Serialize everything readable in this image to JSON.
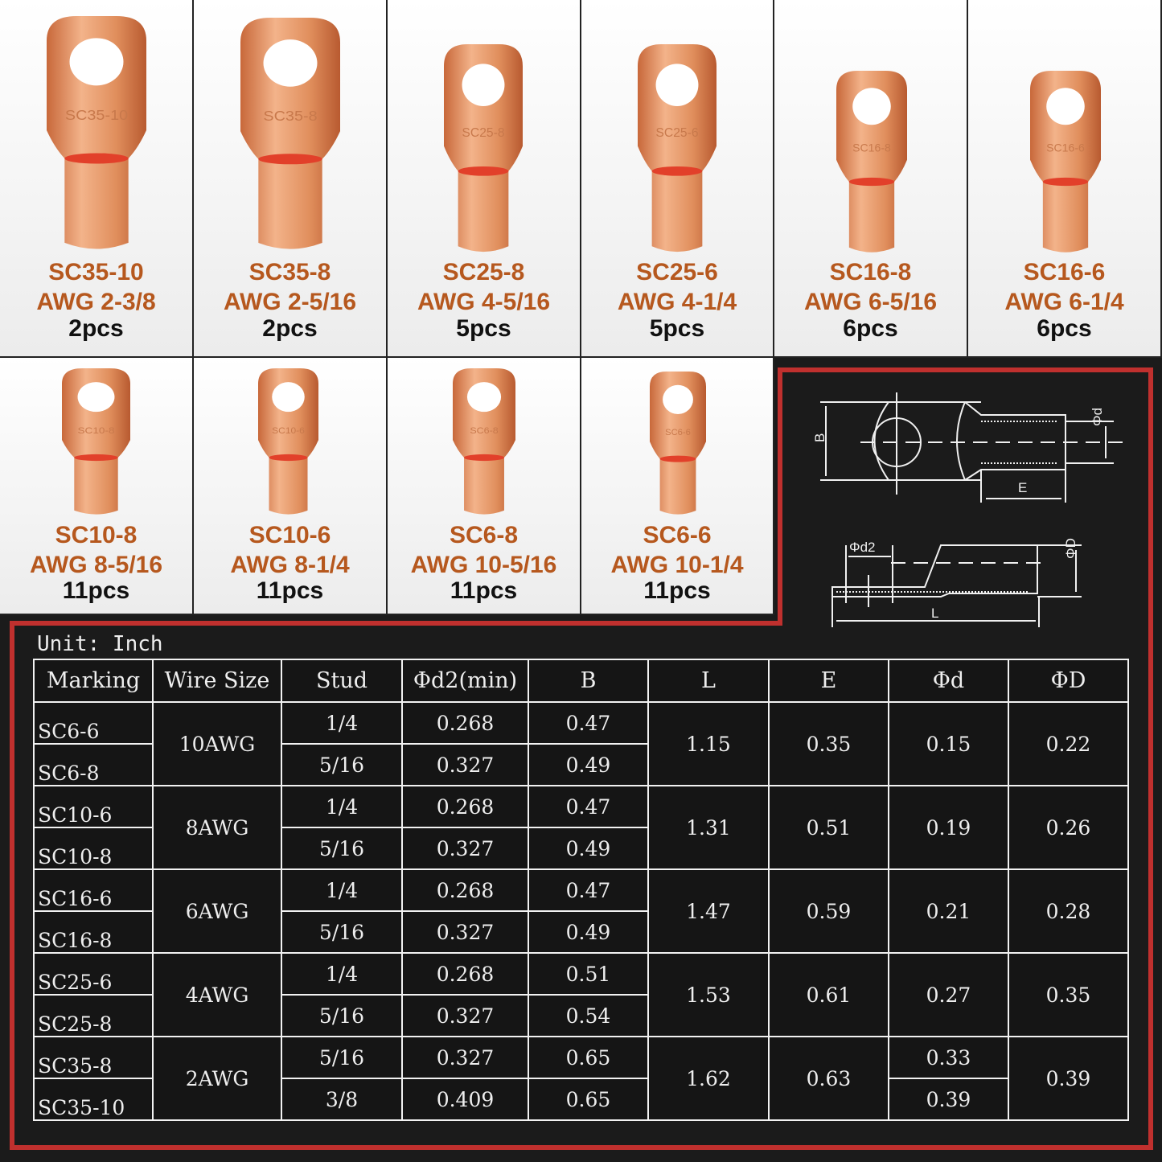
{
  "colors": {
    "copper": "#e59560",
    "label": "#b6581e",
    "frame": "#c0302e",
    "background": "#1b1b1b"
  },
  "products": [
    {
      "marking": "SC35-10",
      "awg": "AWG 2-3/8",
      "qty": "2pcs"
    },
    {
      "marking": "SC35-8",
      "awg": "AWG 2-5/16",
      "qty": "2pcs"
    },
    {
      "marking": "SC25-8",
      "awg": "AWG 4-5/16",
      "qty": "5pcs"
    },
    {
      "marking": "SC25-6",
      "awg": "AWG 4-1/4",
      "qty": "5pcs"
    },
    {
      "marking": "SC16-8",
      "awg": "AWG 6-5/16",
      "qty": "6pcs"
    },
    {
      "marking": "SC16-6",
      "awg": "AWG 6-1/4",
      "qty": "6pcs"
    },
    {
      "marking": "SC10-8",
      "awg": "AWG 8-5/16",
      "qty": "11pcs"
    },
    {
      "marking": "SC10-6",
      "awg": "AWG 8-1/4",
      "qty": "11pcs"
    },
    {
      "marking": "SC6-8",
      "awg": "AWG 10-5/16",
      "qty": "11pcs"
    },
    {
      "marking": "SC6-6",
      "awg": "AWG 10-1/4",
      "qty": "11pcs"
    }
  ],
  "diagram": {
    "B": "B",
    "d": "Φd",
    "E": "E",
    "d2": "Φd2",
    "D": "ΦD",
    "L": "L"
  },
  "table": {
    "unit": "Unit: Inch",
    "headers": [
      "Marking",
      "Wire Size",
      "Stud",
      "Φd2(min)",
      "B",
      "L",
      "E",
      "Φd",
      "ΦD"
    ],
    "groups": [
      {
        "wire": "10AWG",
        "L": "1.15",
        "E": "0.35",
        "d": [
          "0.15"
        ],
        "D": "0.22",
        "rows": [
          {
            "marking": "SC6-6",
            "stud": "1/4",
            "d2": "0.268",
            "B": "0.47"
          },
          {
            "marking": "SC6-8",
            "stud": "5/16",
            "d2": "0.327",
            "B": "0.49"
          }
        ]
      },
      {
        "wire": "8AWG",
        "L": "1.31",
        "E": "0.51",
        "d": [
          "0.19"
        ],
        "D": "0.26",
        "rows": [
          {
            "marking": "SC10-6",
            "stud": "1/4",
            "d2": "0.268",
            "B": "0.47"
          },
          {
            "marking": "SC10-8",
            "stud": "5/16",
            "d2": "0.327",
            "B": "0.49"
          }
        ]
      },
      {
        "wire": "6AWG",
        "L": "1.47",
        "E": "0.59",
        "d": [
          "0.21"
        ],
        "D": "0.28",
        "rows": [
          {
            "marking": "SC16-6",
            "stud": "1/4",
            "d2": "0.268",
            "B": "0.47"
          },
          {
            "marking": "SC16-8",
            "stud": "5/16",
            "d2": "0.327",
            "B": "0.49"
          }
        ]
      },
      {
        "wire": "4AWG",
        "L": "1.53",
        "E": "0.61",
        "d": [
          "0.27"
        ],
        "D": "0.35",
        "rows": [
          {
            "marking": "SC25-6",
            "stud": "1/4",
            "d2": "0.268",
            "B": "0.51"
          },
          {
            "marking": "SC25-8",
            "stud": "5/16",
            "d2": "0.327",
            "B": "0.54"
          }
        ]
      },
      {
        "wire": "2AWG",
        "L": "1.62",
        "E": "0.63",
        "d": [
          "0.33",
          "0.39"
        ],
        "D": "0.39",
        "rows": [
          {
            "marking": "SC35-8",
            "stud": "5/16",
            "d2": "0.327",
            "B": "0.65"
          },
          {
            "marking": "SC35-10",
            "stud": "3/8",
            "d2": "0.409",
            "B": "0.65"
          }
        ]
      }
    ]
  }
}
